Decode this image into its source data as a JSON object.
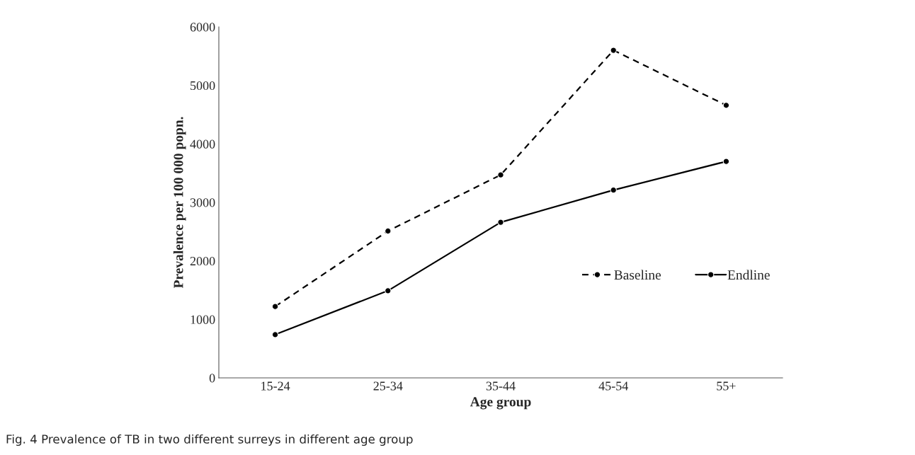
{
  "chart_data": {
    "type": "line",
    "xlabel": "Age group",
    "ylabel": "Prevalence per 100 000 popn.",
    "categories": [
      "15-24",
      "25-34",
      "35-44",
      "45-54",
      "55+"
    ],
    "series": [
      {
        "name": "Baseline",
        "color": "#000000",
        "line_style": "dashed",
        "values": [
          1220,
          2510,
          3470,
          5600,
          4660
        ]
      },
      {
        "name": "Endline",
        "color": "#000000",
        "line_style": "solid",
        "values": [
          740,
          1490,
          2660,
          3210,
          3700
        ]
      }
    ],
    "ylim": [
      0,
      6000
    ],
    "yticks": [
      0,
      1000,
      2000,
      3000,
      4000,
      5000,
      6000
    ],
    "marker": "circle",
    "grid": false,
    "legend": "right",
    "annotations": [
      "Fig. 4 Prevalence of TB in two different surreys in different age group"
    ]
  }
}
